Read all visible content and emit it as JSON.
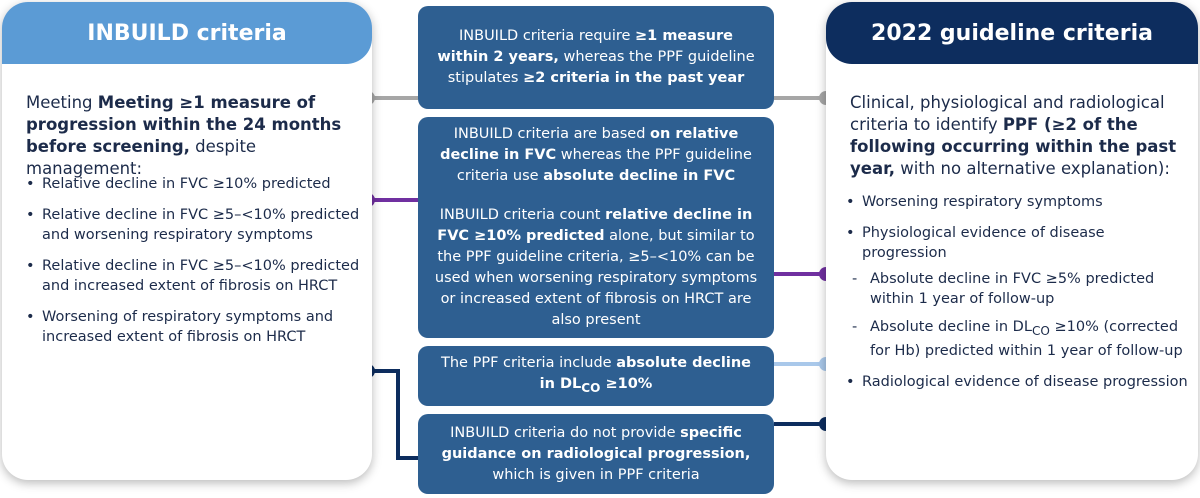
{
  "left": {
    "title": "INBUILD criteria",
    "intro_bold": "Meeting ≥1 measure of progression within the 24 months before screening,",
    "intro_rest": " despite management:",
    "bullets": [
      "Relative decline in FVC ≥10% predicted",
      "Relative decline in FVC ≥5–<10% predicted and worsening respiratory symptoms",
      "Relative decline in FVC ≥5–<10% predicted and increased extent of fibrosis on HRCT",
      "Worsening of respiratory symptoms and increased extent of fibrosis on HRCT"
    ]
  },
  "right": {
    "title": "2022 guideline criteria",
    "intro_a": "Clinical, physiological and radiological criteria to identify ",
    "intro_bold": "PPF (≥2 of the following occurring within the past year,",
    "intro_c": " with no alternative explanation):",
    "b1": "Worsening respiratory symptoms",
    "b2": "Physiological evidence of disease progression",
    "sub1": "Absolute decline in FVC ≥5% predicted within 1 year of follow-up",
    "sub2_a": "Absolute decline in DL",
    "sub2_sub": "CO",
    "sub2_b": " ≥10% (corrected for Hb) predicted within 1 year of follow-up",
    "b3": "Radiological evidence of disease progression"
  },
  "boxes": {
    "box1": {
      "a": "INBUILD criteria require ",
      "bold1": "≥1 measure within 2 years,",
      "b": " whereas the PPF guideline stipulates ",
      "bold2": "≥2 criteria in the past year"
    },
    "box2": {
      "a": "INBUILD criteria are based ",
      "bold1": "on relative decline in FVC",
      "b": " whereas the PPF guideline criteria use ",
      "bold2": "absolute decline in FVC",
      "c": "INBUILD criteria count ",
      "bold3": "relative decline in FVC ≥10% predicted",
      "d": " alone, but similar to the PPF guideline criteria, ≥5–<10% can be used when worsening respiratory symptoms or increased extent of fibrosis on HRCT are also present"
    },
    "box3": {
      "a": "The PPF criteria include ",
      "bold1": "absolute decline in DL",
      "sub": "CO",
      "bold2": " ≥10%"
    },
    "box4": {
      "a": "INBUILD criteria do not provide ",
      "bold1": "specific guidance on radiological progression,",
      "b": " which is given in PPF criteria"
    }
  },
  "colors": {
    "left_header": "#5b9bd5",
    "right_header": "#0d2d5e",
    "box": "#2e5f91",
    "gray_connector": "#a6a6a6",
    "purple_connector": "#7030a0",
    "light_blue_connector": "#a9c8ea",
    "navy_connector": "#0d2d5e"
  }
}
